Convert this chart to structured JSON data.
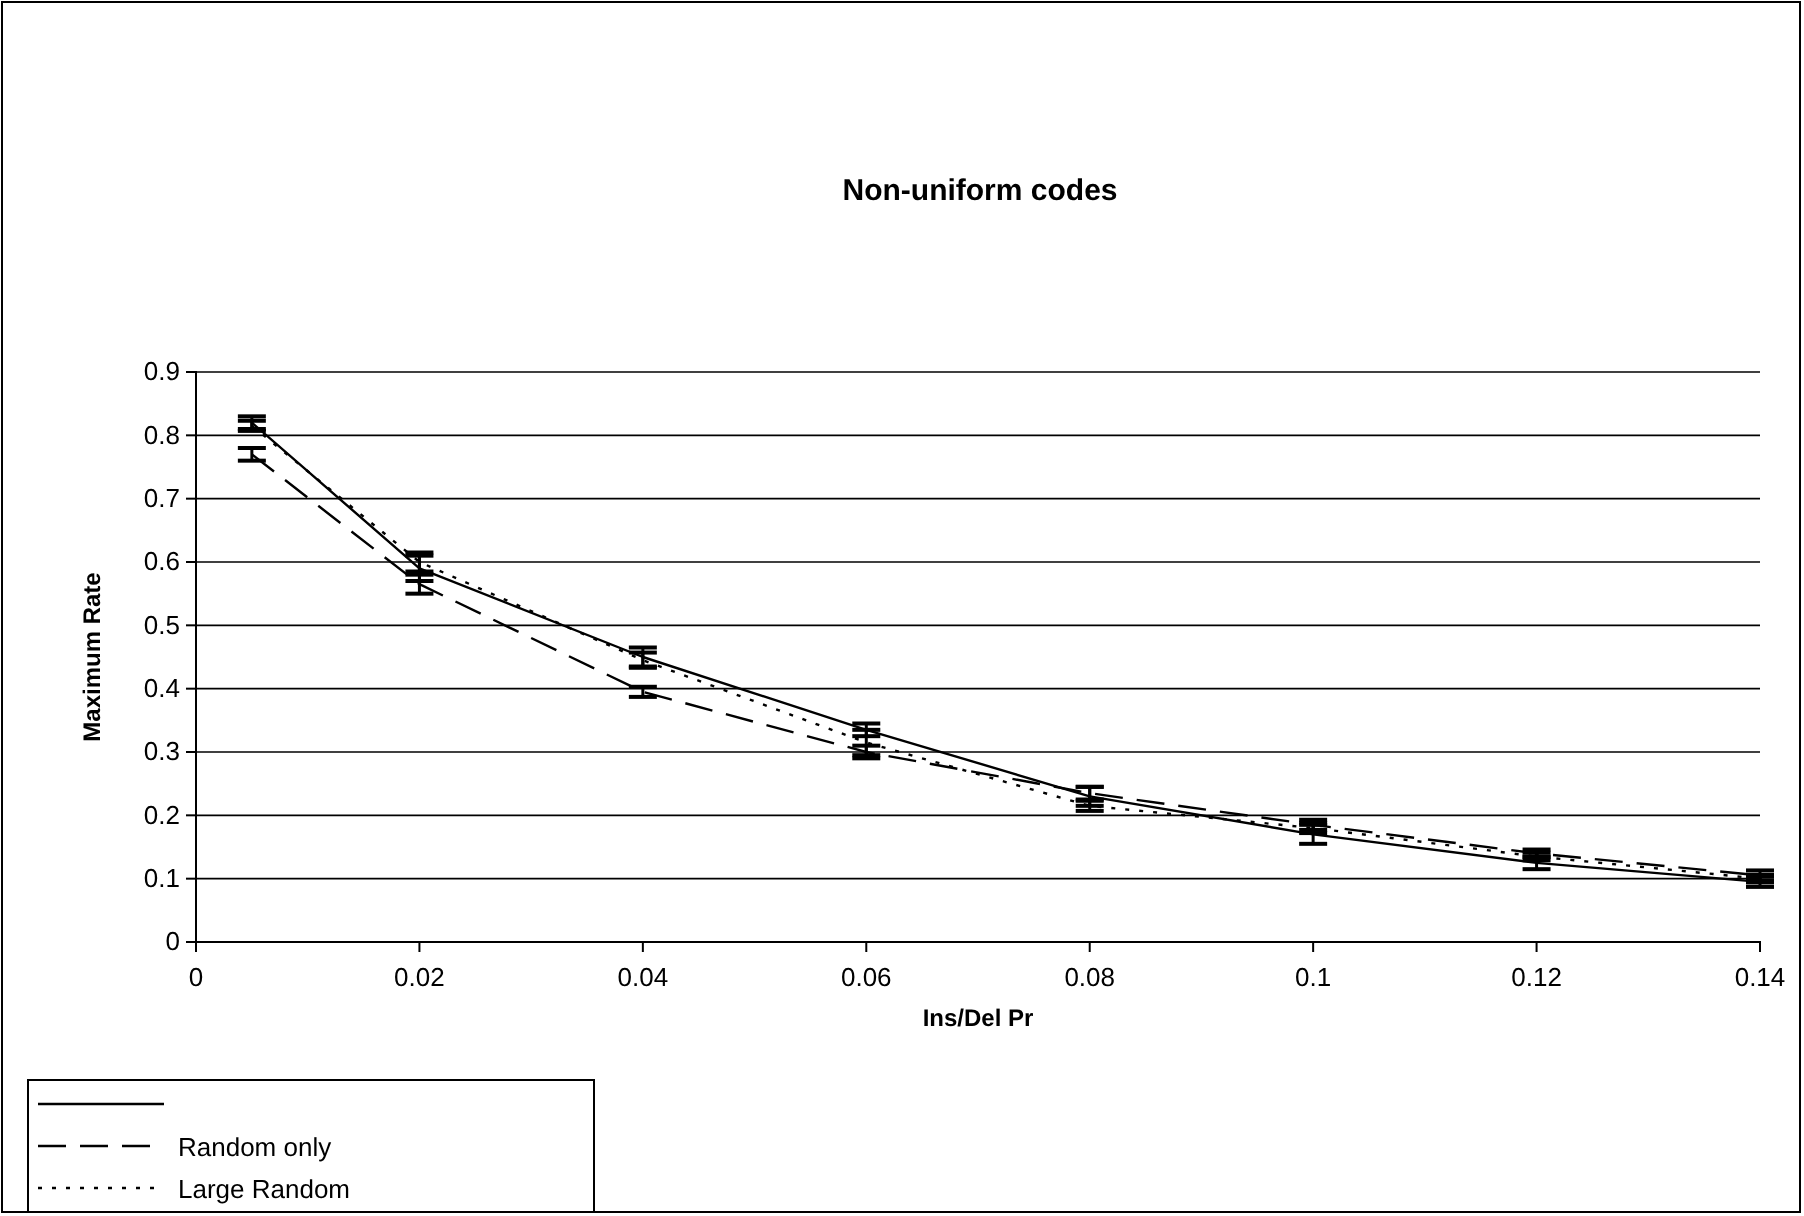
{
  "chart_data": {
    "type": "line",
    "title": "Non-uniform codes",
    "xlabel": "Ins/Del Pr",
    "ylabel": "Maximum Rate",
    "x": [
      0.005,
      0.02,
      0.04,
      0.06,
      0.08,
      0.1,
      0.12,
      0.14
    ],
    "xlim": [
      0,
      0.14
    ],
    "xticks": [
      0,
      0.02,
      0.04,
      0.06,
      0.08,
      0.1,
      0.12,
      0.14
    ],
    "ylim": [
      0,
      0.9
    ],
    "yticks": [
      0,
      0.1,
      0.2,
      0.3,
      0.4,
      0.5,
      0.6,
      0.7,
      0.8,
      0.9
    ],
    "grid": "y",
    "legend": "bottom left",
    "marker": "none",
    "series": [
      {
        "color": "#000000",
        "line_style": "solid",
        "values": [
          0.82,
          0.59,
          0.45,
          0.335,
          0.23,
          0.17,
          0.125,
          0.095
        ],
        "errors": [
          0.01,
          0.02,
          0.015,
          0.01,
          0.015,
          0.015,
          0.01,
          0.008
        ]
      },
      {
        "name": "Random only",
        "color": "#000000",
        "line_style": "dashed",
        "values": [
          0.77,
          0.565,
          0.395,
          0.3,
          0.235,
          0.185,
          0.14,
          0.105
        ],
        "errors": [
          0.01,
          0.015,
          0.008,
          0.01,
          0.01,
          0.008,
          0.006,
          0.008
        ]
      },
      {
        "name": "Large Random",
        "color": "#000000",
        "line_style": "dotted",
        "values": [
          0.815,
          0.6,
          0.445,
          0.315,
          0.215,
          0.18,
          0.135,
          0.1
        ],
        "errors": [
          0.008,
          0.015,
          0.012,
          0.02,
          0.008,
          0.008,
          0.006,
          0.006
        ]
      }
    ]
  }
}
